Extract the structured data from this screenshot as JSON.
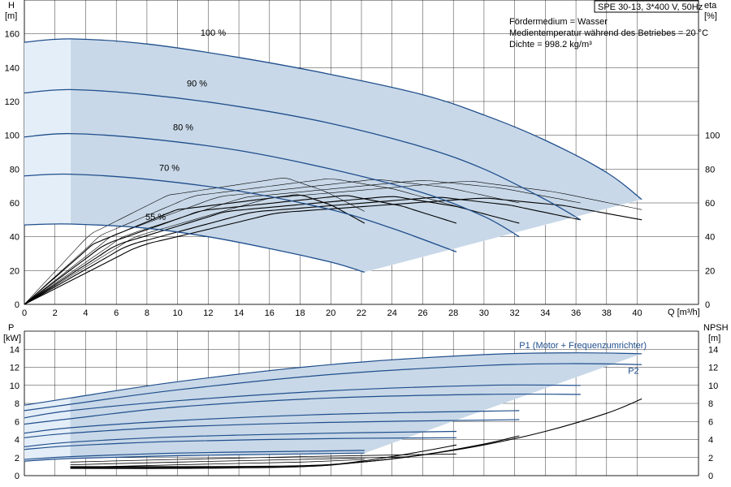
{
  "title": "SPE 30-13, 3*400 V, 50Hz",
  "info_lines": [
    "Fördermedium = Wasser",
    "Medientemperatur während des Betriebes = 20 °C",
    "Dichte = 998.2 kg/m³"
  ],
  "colors": {
    "curve": "#1f4e8c",
    "area": "#c8d8e8",
    "area_light": "#e4eef8",
    "grid": "#000000"
  },
  "chart_data": [
    {
      "type": "line",
      "name": "head",
      "ylabel": [
        "H",
        "[m]"
      ],
      "y2label": [
        "eta",
        "[%]"
      ],
      "xlabel": "Q [m³/h]",
      "xlim": [
        0,
        44
      ],
      "ylim": [
        0,
        180
      ],
      "y2lim": [
        0,
        180
      ],
      "x_ticks": [
        0,
        2,
        4,
        6,
        8,
        10,
        12,
        14,
        16,
        18,
        20,
        22,
        24,
        26,
        28,
        30,
        32,
        34,
        36,
        38,
        40
      ],
      "y_ticks": [
        0,
        20,
        40,
        60,
        80,
        100,
        120,
        140,
        160
      ],
      "y2_ticks": [
        0,
        20,
        40,
        60,
        80,
        100
      ],
      "grid": true,
      "series": [
        {
          "name": "100 %",
          "x": [
            0,
            3,
            8,
            14,
            20,
            26,
            30,
            34,
            38,
            40.3
          ],
          "y": [
            155,
            157,
            154,
            146,
            136,
            124,
            112,
            97,
            78,
            62
          ]
        },
        {
          "name": "90 %",
          "x": [
            0,
            3,
            8,
            14,
            20,
            26,
            30,
            34,
            36.3
          ],
          "y": [
            125,
            127,
            124,
            117,
            107,
            93,
            80,
            62,
            50
          ]
        },
        {
          "name": "80 %",
          "x": [
            0,
            3,
            8,
            14,
            20,
            26,
            30,
            32.3
          ],
          "y": [
            99,
            101,
            98,
            91,
            80,
            66,
            52,
            40
          ]
        },
        {
          "name": "70 %",
          "x": [
            0,
            3,
            8,
            14,
            20,
            24,
            28.2
          ],
          "y": [
            76,
            77,
            74,
            67,
            56,
            45,
            31
          ]
        },
        {
          "name": "55 %",
          "x": [
            0,
            3,
            8,
            12,
            16,
            20,
            22.2
          ],
          "y": [
            47,
            47.5,
            45,
            40,
            33,
            25,
            19
          ]
        }
      ],
      "annotations": [
        {
          "text": "100 %",
          "x": 11.5,
          "y": 159
        },
        {
          "text": "90 %",
          "x": 10.6,
          "y": 129
        },
        {
          "text": "80 %",
          "x": 9.7,
          "y": 103
        },
        {
          "text": "70 %",
          "x": 8.8,
          "y": 79
        },
        {
          "text": "55 %",
          "x": 7.9,
          "y": 50
        }
      ]
    },
    {
      "type": "line",
      "name": "power",
      "ylabel": [
        "P",
        "[kW]"
      ],
      "y2label": [
        "NPSH",
        "[m]"
      ],
      "xlim": [
        0,
        44
      ],
      "ylim": [
        0,
        16
      ],
      "y2lim": [
        0,
        16
      ],
      "y_ticks": [
        0,
        2,
        4,
        6,
        8,
        10,
        12,
        14
      ],
      "y2_ticks": [
        0,
        2,
        4,
        6,
        8,
        10,
        12,
        14
      ],
      "grid": true,
      "series": [
        {
          "name": "P1 (Motor + Frequenzumrichter)",
          "x": [
            0,
            3,
            10,
            20,
            30,
            36,
            40.3
          ],
          "y": [
            7.8,
            8.6,
            10.4,
            12.3,
            13.4,
            13.6,
            13.5
          ]
        },
        {
          "name": "P2",
          "x": [
            0,
            3,
            10,
            20,
            30,
            36,
            40.3
          ],
          "y": [
            7.2,
            7.9,
            9.5,
            11.2,
            12.2,
            12.4,
            12.3
          ]
        },
        {
          "name": "",
          "x": [
            0,
            3,
            10,
            20,
            30,
            36.3
          ],
          "y": [
            6.4,
            7.2,
            8.3,
            9.4,
            10.0,
            10.0
          ]
        },
        {
          "name": "",
          "x": [
            0,
            3,
            10,
            20,
            30,
            36.3
          ],
          "y": [
            5.7,
            6.3,
            7.6,
            8.6,
            9.0,
            9.0
          ]
        },
        {
          "name": "",
          "x": [
            0,
            3,
            10,
            20,
            32.3
          ],
          "y": [
            4.7,
            5.3,
            6.1,
            6.8,
            7.2
          ]
        },
        {
          "name": "",
          "x": [
            0,
            3,
            10,
            20,
            32.3
          ],
          "y": [
            4.2,
            4.7,
            5.4,
            5.9,
            6.2
          ]
        },
        {
          "name": "",
          "x": [
            0,
            3,
            10,
            20,
            28.2
          ],
          "y": [
            3.2,
            3.7,
            4.3,
            4.7,
            4.9
          ]
        },
        {
          "name": "",
          "x": [
            0,
            3,
            10,
            20,
            28.2
          ],
          "y": [
            2.9,
            3.3,
            3.8,
            4.1,
            4.2
          ]
        },
        {
          "name": "",
          "x": [
            0,
            3,
            10,
            18,
            22.2
          ],
          "y": [
            1.8,
            2.1,
            2.5,
            2.7,
            2.8
          ]
        },
        {
          "name": "",
          "x": [
            0,
            3,
            10,
            18,
            22.2
          ],
          "y": [
            1.6,
            1.9,
            2.2,
            2.4,
            2.5
          ]
        }
      ],
      "npsh": [
        {
          "x": [
            3,
            10,
            18,
            22,
            26,
            30,
            34,
            38,
            40.3
          ],
          "y": [
            1.0,
            1.0,
            1.1,
            1.5,
            2.3,
            3.4,
            4.9,
            6.9,
            8.5
          ]
        },
        {
          "x": [
            3,
            10,
            18,
            22,
            26,
            30,
            32.3
          ],
          "y": [
            0.9,
            0.9,
            1.0,
            1.5,
            2.3,
            3.5,
            4.4
          ]
        },
        {
          "x": [
            3,
            10,
            18,
            22,
            26,
            28.2
          ],
          "y": [
            0.8,
            0.8,
            1.0,
            1.6,
            2.7,
            3.4
          ]
        }
      ],
      "annotations": [
        {
          "text": "P1 (Motor + Frequenzumrichter)",
          "x": 32.3,
          "y": 14.1
        },
        {
          "text": "P2",
          "x": 39.4,
          "y": 11.3
        }
      ]
    }
  ]
}
